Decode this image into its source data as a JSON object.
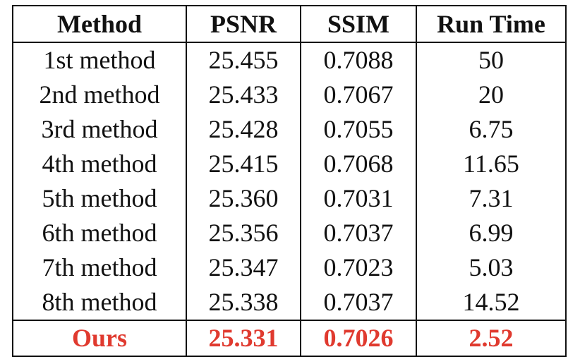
{
  "table": {
    "headers": [
      "Method",
      "PSNR",
      "SSIM",
      "Run Time"
    ],
    "rows": [
      {
        "method": "1st method",
        "psnr": "25.455",
        "ssim": "0.7088",
        "run_time": "50"
      },
      {
        "method": "2nd method",
        "psnr": "25.433",
        "ssim": "0.7067",
        "run_time": "20"
      },
      {
        "method": "3rd method",
        "psnr": "25.428",
        "ssim": "0.7055",
        "run_time": "6.75"
      },
      {
        "method": "4th method",
        "psnr": "25.415",
        "ssim": "0.7068",
        "run_time": "11.65"
      },
      {
        "method": "5th method",
        "psnr": "25.360",
        "ssim": "0.7031",
        "run_time": "7.31"
      },
      {
        "method": "6th method",
        "psnr": "25.356",
        "ssim": "0.7037",
        "run_time": "6.99"
      },
      {
        "method": "7th method",
        "psnr": "25.347",
        "ssim": "0.7023",
        "run_time": "5.03"
      },
      {
        "method": "8th method",
        "psnr": "25.338",
        "ssim": "0.7037",
        "run_time": "14.52"
      }
    ],
    "ours": {
      "method": "Ours",
      "psnr": "25.331",
      "ssim": "0.7026",
      "run_time": "2.52"
    }
  },
  "colors": {
    "highlight": "#e03a2f",
    "text": "#111111",
    "background": "#ffffff"
  }
}
